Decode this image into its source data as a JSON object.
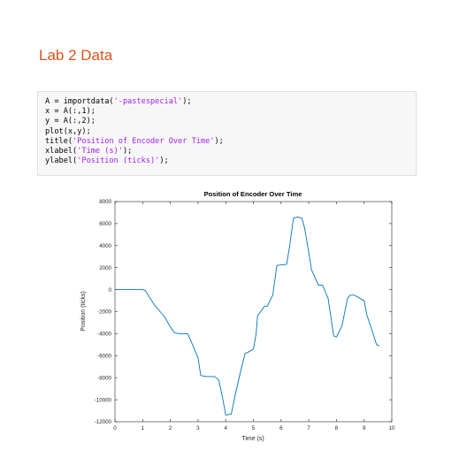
{
  "page": {
    "title": "Lab 2 Data"
  },
  "code": {
    "lines": [
      [
        {
          "t": "A = importdata("
        },
        {
          "t": "'-pastespecial'",
          "s": true
        },
        {
          "t": ");"
        }
      ],
      [
        {
          "t": "x = A(:,1);"
        }
      ],
      [
        {
          "t": "y = A(:,2);"
        }
      ],
      [
        {
          "t": "plot(x,y);"
        }
      ],
      [
        {
          "t": "title("
        },
        {
          "t": "'Position of Encoder Over Time'",
          "s": true
        },
        {
          "t": ");"
        }
      ],
      [
        {
          "t": "xlabel("
        },
        {
          "t": "'Time (s)'",
          "s": true
        },
        {
          "t": ");"
        }
      ],
      [
        {
          "t": "ylabel("
        },
        {
          "t": "'Position (ticks)'",
          "s": true
        },
        {
          "t": ");"
        }
      ]
    ],
    "string_color": "#a020f0"
  },
  "chart_data": {
    "type": "line",
    "title": "Position of Encoder Over Time",
    "xlabel": "Time (s)",
    "ylabel": "Position (ticks)",
    "xlim": [
      0,
      10
    ],
    "ylim": [
      -12000,
      8000
    ],
    "xticks": [
      0,
      1,
      2,
      3,
      4,
      5,
      6,
      7,
      8,
      9,
      10
    ],
    "yticks": [
      -12000,
      -10000,
      -8000,
      -6000,
      -4000,
      -2000,
      0,
      2000,
      4000,
      6000,
      8000
    ],
    "grid": false,
    "line_color": "#0072bd",
    "series": [
      {
        "x": [
          0,
          1.0,
          1.1,
          1.25,
          1.4,
          1.6,
          1.8,
          2.0,
          2.15,
          2.3,
          2.6,
          2.65,
          2.8,
          3.0,
          3.1,
          3.3,
          3.6,
          3.75,
          3.9,
          4.0,
          4.2,
          4.35,
          4.55,
          4.7,
          4.8,
          5.0,
          5.1,
          5.15,
          5.4,
          5.5,
          5.7,
          5.85,
          6.2,
          6.3,
          6.45,
          6.6,
          6.75,
          6.85,
          7.0,
          7.1,
          7.35,
          7.5,
          7.7,
          7.9,
          8.0,
          8.2,
          8.4,
          8.5,
          8.65,
          9.0,
          9.1,
          9.3,
          9.45,
          9.55
        ],
        "y": [
          0,
          0,
          -100,
          -700,
          -1300,
          -1900,
          -2500,
          -3400,
          -3900,
          -4000,
          -4000,
          -4100,
          -5000,
          -6200,
          -7800,
          -7900,
          -7900,
          -8200,
          -10000,
          -11400,
          -11300,
          -9500,
          -7300,
          -5800,
          -5700,
          -5400,
          -4000,
          -2400,
          -1500,
          -1500,
          -500,
          2200,
          2300,
          3800,
          6500,
          6600,
          6500,
          5600,
          3400,
          1800,
          400,
          400,
          -800,
          -4200,
          -4300,
          -3300,
          -800,
          -500,
          -500,
          -1000,
          -2300,
          -3800,
          -5000,
          -5100
        ]
      }
    ]
  }
}
